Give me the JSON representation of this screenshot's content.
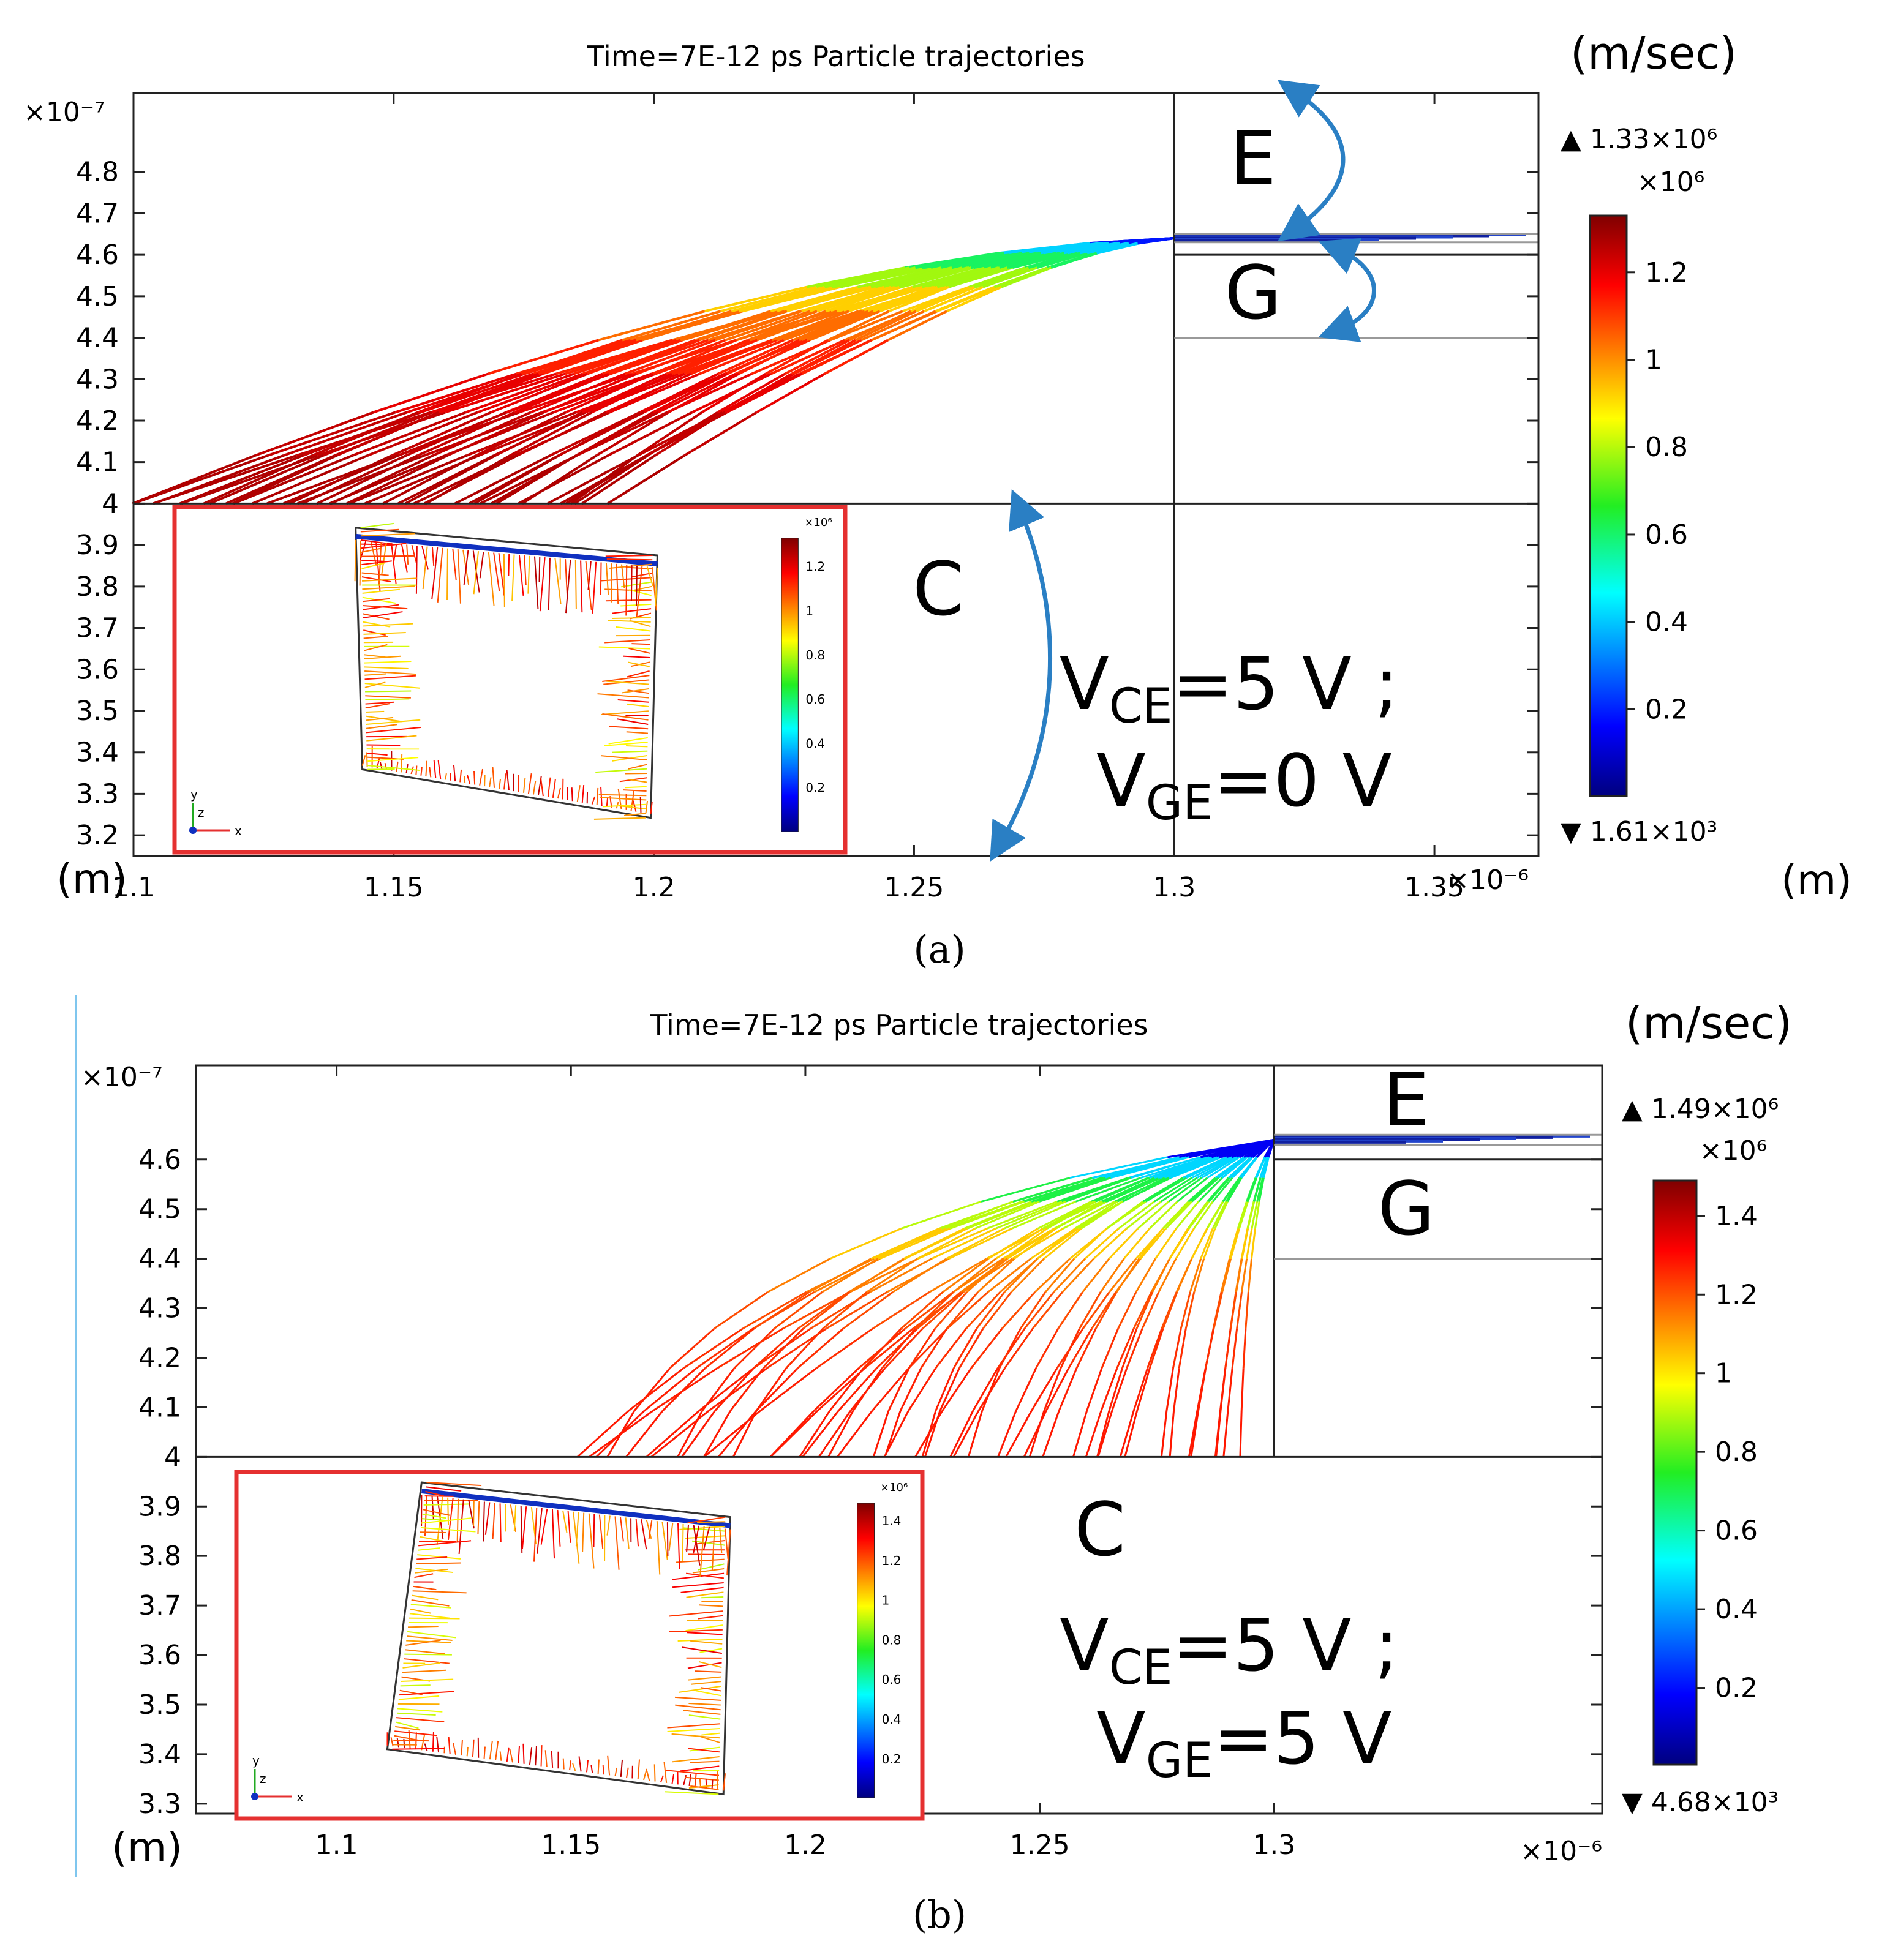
{
  "figure": {
    "panel_a_label": "(a)",
    "panel_b_label": "(b)"
  },
  "chart_data": [
    {
      "id": "a",
      "type": "line",
      "title": "Time=7E-12 ps  Particle trajectories",
      "x_range": [
        1.1,
        1.37
      ],
      "y_range": [
        3.15,
        4.99
      ],
      "x_ticks": [
        "1.1",
        "1.15",
        "1.2",
        "1.25",
        "1.3",
        "1.35"
      ],
      "y_ticks": [
        "3.2",
        "3.3",
        "3.4",
        "3.5",
        "3.6",
        "3.7",
        "3.8",
        "3.9",
        "4",
        "4.1",
        "4.2",
        "4.3",
        "4.4",
        "4.5",
        "4.6",
        "4.7",
        "4.8"
      ],
      "x_exponent": "×10⁻⁶",
      "y_exponent": "×10⁻⁷",
      "x_unit": "(m)",
      "y_unit": "(m)",
      "colorbar": {
        "unit": "(m/sec)",
        "max_label": "▲ 1.33×10⁶",
        "min_label": "▼ 1.61×10³",
        "exponent": "×10⁶",
        "min": 0.00161,
        "max": 1.33,
        "ticks": [
          "0.2",
          "0.4",
          "0.6",
          "0.8",
          "1",
          "1.2"
        ]
      },
      "boundaries": {
        "x_vertical": 1.3,
        "y_horizontal": [
          4.0,
          4.4,
          4.6,
          4.63,
          4.65
        ]
      },
      "regions": [
        "E",
        "G",
        "C"
      ],
      "annotation_lines": [
        "V<sub>CE</sub>=5 V ;",
        "V<sub>GE</sub>=0 V"
      ],
      "trajectories_origin": [
        1.3,
        4.64
      ],
      "trajectories_start_range": [
        1.1,
        1.19
      ],
      "trajectory_count": 44,
      "inset": {
        "colorbar_ticks": [
          "0.2",
          "0.4",
          "0.6",
          "0.8",
          "1",
          "1.2"
        ],
        "exponent": "×10⁶",
        "axes_labels": [
          "y",
          "z",
          "x"
        ]
      }
    },
    {
      "id": "b",
      "type": "line",
      "title": "Time=7E-12 ps  Particle trajectories",
      "x_range": [
        1.07,
        1.37
      ],
      "y_range": [
        3.28,
        4.79
      ],
      "x_ticks": [
        "1.1",
        "1.15",
        "1.2",
        "1.25",
        "1.3"
      ],
      "y_ticks": [
        "3.3",
        "3.4",
        "3.5",
        "3.6",
        "3.7",
        "3.8",
        "3.9",
        "4",
        "4.1",
        "4.2",
        "4.3",
        "4.4",
        "4.5",
        "4.6"
      ],
      "x_exponent": "×10⁻⁶",
      "y_exponent": "×10⁻⁷",
      "y_unit": "(m)",
      "colorbar": {
        "unit": "(m/sec)",
        "max_label": "▲ 1.49×10⁶",
        "min_label": "▼ 4.68×10³",
        "exponent": "×10⁶",
        "min": 0.00468,
        "max": 1.49,
        "ticks": [
          "0.2",
          "0.4",
          "0.6",
          "0.8",
          "1",
          "1.2",
          "1.4"
        ]
      },
      "boundaries": {
        "x_vertical": 1.3,
        "y_horizontal": [
          4.0,
          4.4,
          4.6,
          4.63,
          4.65
        ]
      },
      "regions": [
        "E",
        "G",
        "C"
      ],
      "annotation_lines": [
        "V<sub>CE</sub>=5 V ;",
        "V<sub>GE</sub>=5 V"
      ],
      "trajectories_origin": [
        1.3,
        4.64
      ],
      "trajectories_start_range": [
        1.15,
        1.295
      ],
      "trajectory_count": 48,
      "inset": {
        "colorbar_ticks": [
          "0.2",
          "0.4",
          "0.6",
          "0.8",
          "1",
          "1.2",
          "1.4"
        ],
        "exponent": "×10⁶",
        "axes_labels": [
          "y",
          "z",
          "x"
        ]
      }
    }
  ]
}
